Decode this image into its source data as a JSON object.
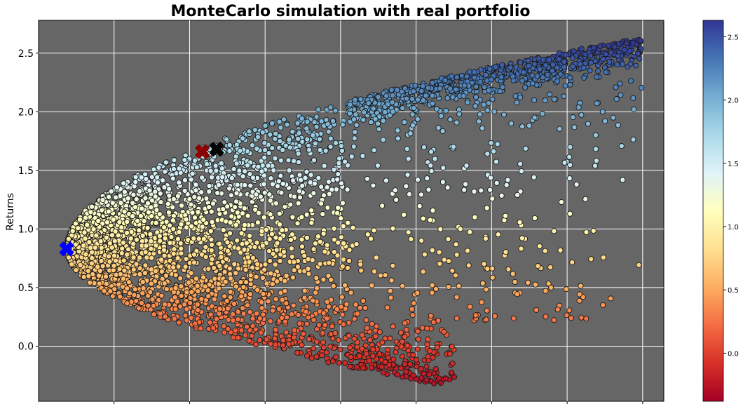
{
  "chart_data": {
    "type": "scatter",
    "title": "MonteCarlo simulation with real portfolio",
    "xlabel": "",
    "ylabel": "Returns",
    "ylim": [
      -0.47,
      2.78
    ],
    "yticks": [
      "0.0",
      "0.5",
      "1.0",
      "1.5",
      "2.0",
      "2.5"
    ],
    "ytick_values": [
      0.0,
      0.5,
      1.0,
      1.5,
      2.0,
      2.5
    ],
    "xlim": [
      0.0,
      1.0
    ],
    "xticks_count": 8,
    "x_tick_labels_visible": false,
    "grid": true,
    "background": "#666666",
    "grid_color": "#ffffff",
    "colormap": "RdYlBu",
    "colormap_stops": [
      "#a50026",
      "#d73027",
      "#f46d43",
      "#fdae61",
      "#fee090",
      "#ffffbf",
      "#e0f3f8",
      "#abd9e9",
      "#74add1",
      "#4575b4",
      "#313695"
    ],
    "colorbar": {
      "range": [
        -0.38,
        2.63
      ],
      "ticks": [
        "0.0",
        "0.5",
        "1.0",
        "1.5",
        "2.0",
        "2.5"
      ],
      "tick_values": [
        0.0,
        0.5,
        1.0,
        1.5,
        2.0,
        2.5
      ]
    },
    "frontier": {
      "apex": {
        "x": 0.045,
        "y": 0.83
      },
      "upper_tip": {
        "x": 0.96,
        "y": 2.63
      },
      "lower_tip": {
        "x": 0.67,
        "y": -0.33
      }
    },
    "special_points": [
      {
        "name": "min-volatility",
        "x": 0.045,
        "y": 0.83,
        "color": "#0000ff"
      },
      {
        "name": "max-sharpe",
        "x": 0.262,
        "y": 1.66,
        "color": "#8b0000"
      },
      {
        "name": "real-portfolio",
        "x": 0.285,
        "y": 1.68,
        "color": "#000000"
      }
    ],
    "point_count": 4500
  }
}
